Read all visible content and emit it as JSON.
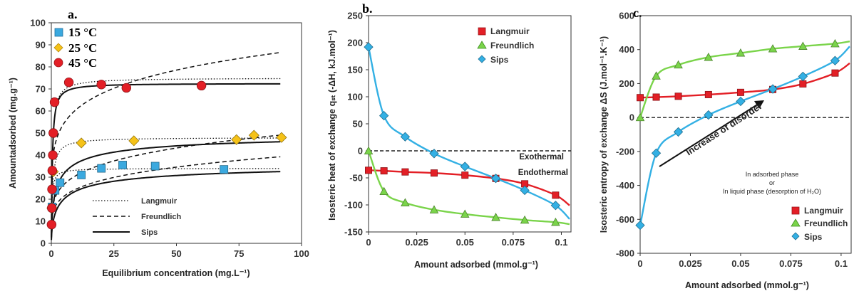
{
  "colors": {
    "red": "#e31f26",
    "yellow": "#f5c218",
    "blue": "#3ba9df",
    "green": "#7ad44a",
    "cyan": "#33b0e4",
    "black": "#111111"
  },
  "chart_data": [
    {
      "panel_label": "a.",
      "type": "scatter",
      "xlabel": "Equilibrium concentration (mg.L⁻¹)",
      "ylabel": "Amountadsorbed (mg.g⁻¹)",
      "xlim": [
        0,
        100
      ],
      "ylim": [
        0,
        100
      ],
      "xticks": [
        0,
        25,
        50,
        75,
        100
      ],
      "yticks": [
        0,
        10,
        20,
        30,
        40,
        50,
        60,
        70,
        80,
        90,
        100
      ],
      "series": [
        {
          "name": "15 °C",
          "marker": "square",
          "color": "#3ba9df",
          "x": [
            0.3,
            1.5,
            3.5,
            12,
            20,
            28.5,
            41.5,
            69
          ],
          "y": [
            16.5,
            24,
            27.5,
            31,
            34,
            35.5,
            35,
            33.5
          ],
          "fits": {
            "langmuir": [
              34,
              4
            ],
            "freundlich": [
              15.2,
              0.21
            ],
            "sips": [
              37.5,
              0.25,
              0.6
            ]
          }
        },
        {
          "name": "25 °C",
          "marker": "diamond",
          "color": "#f5c218",
          "x": [
            0.2,
            0.8,
            12,
            33,
            74,
            81,
            92
          ],
          "y": [
            16,
            32.5,
            45.5,
            46.5,
            47,
            49,
            48
          ],
          "fits": {
            "langmuir": [
              48,
              2
            ],
            "freundlich": [
              19,
              0.21
            ],
            "sips": [
              51,
              0.45,
              0.6
            ]
          }
        },
        {
          "name": "45 °C",
          "marker": "circle",
          "color": "#e31f26",
          "x": [
            0.1,
            0.2,
            0.3,
            0.4,
            0.6,
            0.8,
            1.3,
            7,
            20,
            30,
            60
          ],
          "y": [
            8.5,
            16,
            24.5,
            33,
            40,
            50,
            64,
            73,
            72,
            70.5,
            71.5
          ],
          "fits": {
            "langmuir": [
              75,
              2.5
            ],
            "freundlich": [
              42,
              0.16
            ],
            "sips": [
              72.5,
              2.5,
              1.1
            ]
          }
        }
      ],
      "legend_symbols": [
        "15 °C",
        "25 °C",
        "45 °C"
      ],
      "legend_lines": [
        {
          "name": "Langmuir",
          "style": "dotted"
        },
        {
          "name": "Freundlich",
          "style": "dashed"
        },
        {
          "name": "Sips",
          "style": "solid"
        }
      ]
    },
    {
      "panel_label": "b.",
      "type": "line",
      "xlabel": "Amount adsorbed (mmol.g⁻¹)",
      "ylabel": "Isosteric heat of exchange qₛₜ (-ΔH, kJ.mol⁻¹)",
      "xlim": [
        0,
        0.105
      ],
      "ylim": [
        -150,
        250
      ],
      "xticks": [
        0,
        0.025,
        0.05,
        0.075,
        0.1
      ],
      "xticklabels": [
        "0",
        "0.025",
        "0.05",
        "0.075",
        "0.1"
      ],
      "yticks": [
        -150,
        -100,
        -50,
        0,
        50,
        100,
        150,
        200,
        250
      ],
      "reference_line": 0,
      "annotations": [
        "Exothermal",
        "Endothermal"
      ],
      "series": [
        {
          "name": "Langmuir",
          "marker": "square",
          "color": "#e31f26",
          "x": [
            0,
            0.008,
            0.019,
            0.034,
            0.05,
            0.066,
            0.081,
            0.097
          ],
          "y": [
            -36,
            -37,
            -39,
            -41,
            -45,
            -51,
            -61,
            -82
          ]
        },
        {
          "name": "Freundlich",
          "marker": "triangle",
          "color": "#7ad44a",
          "x": [
            0,
            0.008,
            0.019,
            0.034,
            0.05,
            0.066,
            0.081,
            0.097
          ],
          "y": [
            0,
            -75,
            -96,
            -109,
            -117,
            -123,
            -128,
            -132
          ]
        },
        {
          "name": "Sips",
          "marker": "diamond",
          "color": "#33b0e4",
          "x": [
            0,
            0.008,
            0.019,
            0.034,
            0.05,
            0.066,
            0.081,
            0.097
          ],
          "y": [
            192,
            65,
            26,
            -5,
            -29,
            -51,
            -73,
            -101
          ]
        }
      ]
    },
    {
      "panel_label": "c.",
      "type": "line",
      "xlabel": "Amount adsorbed (mmol.g⁻¹)",
      "ylabel": "Isosteric entropy of exchange ΔS (J.mol⁻¹.K⁻¹)",
      "xlim": [
        0,
        0.105
      ],
      "ylim": [
        -800,
        600
      ],
      "xticks": [
        0,
        0.025,
        0.05,
        0.075,
        0.1
      ],
      "xticklabels": [
        "0",
        "0.025",
        "0.05",
        "0.075",
        "0.1"
      ],
      "yticks": [
        -800,
        -600,
        -400,
        -200,
        0,
        200,
        400,
        600
      ],
      "reference_line": 0,
      "arrow_label": "Increase of disorder",
      "annotations": [
        "In adsorbed phase",
        "or",
        "In liquid phase (desorption of H₂O)"
      ],
      "series": [
        {
          "name": "Langmuir",
          "marker": "square",
          "color": "#e31f26",
          "x": [
            0,
            0.008,
            0.019,
            0.034,
            0.05,
            0.066,
            0.081,
            0.097
          ],
          "y": [
            117,
            120,
            125,
            135,
            148,
            165,
            198,
            262
          ]
        },
        {
          "name": "Freundlich",
          "marker": "triangle",
          "color": "#7ad44a",
          "x": [
            0,
            0.008,
            0.019,
            0.034,
            0.05,
            0.066,
            0.081,
            0.097
          ],
          "y": [
            0,
            245,
            310,
            355,
            380,
            405,
            420,
            435
          ]
        },
        {
          "name": "Sips",
          "marker": "diamond",
          "color": "#33b0e4",
          "x": [
            0,
            0.008,
            0.019,
            0.034,
            0.05,
            0.066,
            0.081,
            0.097
          ],
          "y": [
            -635,
            -210,
            -85,
            15,
            95,
            168,
            242,
            335
          ]
        }
      ]
    }
  ]
}
